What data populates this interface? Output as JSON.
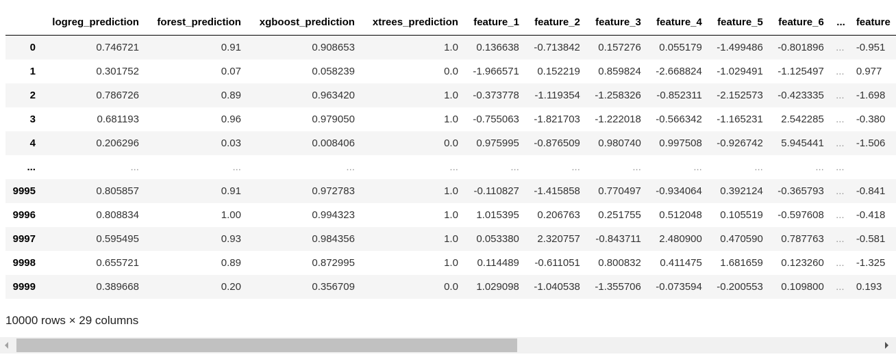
{
  "table": {
    "columns": [
      "",
      "logreg_prediction",
      "forest_prediction",
      "xgboost_prediction",
      "xtrees_prediction",
      "feature_1",
      "feature_2",
      "feature_3",
      "feature_4",
      "feature_5",
      "feature_6",
      "...",
      "feature"
    ],
    "rows": [
      {
        "index": "0",
        "cells": [
          "0.746721",
          "0.91",
          "0.908653",
          "1.0",
          "0.136638",
          "-0.713842",
          "0.157276",
          "0.055179",
          "-1.499486",
          "-0.801896",
          "...",
          "-0.951"
        ]
      },
      {
        "index": "1",
        "cells": [
          "0.301752",
          "0.07",
          "0.058239",
          "0.0",
          "-1.966571",
          "0.152219",
          "0.859824",
          "-2.668824",
          "-1.029491",
          "-1.125497",
          "...",
          "0.977"
        ]
      },
      {
        "index": "2",
        "cells": [
          "0.786726",
          "0.89",
          "0.963420",
          "1.0",
          "-0.373778",
          "-1.119354",
          "-1.258326",
          "-0.852311",
          "-2.152573",
          "-0.423335",
          "...",
          "-1.698"
        ]
      },
      {
        "index": "3",
        "cells": [
          "0.681193",
          "0.96",
          "0.979050",
          "1.0",
          "-0.755063",
          "-1.821703",
          "-1.222018",
          "-0.566342",
          "-1.165231",
          "2.542285",
          "...",
          "-0.380"
        ]
      },
      {
        "index": "4",
        "cells": [
          "0.206296",
          "0.03",
          "0.008406",
          "0.0",
          "0.975995",
          "-0.876509",
          "0.980740",
          "0.997508",
          "-0.926742",
          "5.945441",
          "...",
          "-1.506"
        ]
      },
      {
        "index": "...",
        "cells": [
          "...",
          "...",
          "...",
          "...",
          "...",
          "...",
          "...",
          "...",
          "...",
          "...",
          "...",
          ""
        ]
      },
      {
        "index": "9995",
        "cells": [
          "0.805857",
          "0.91",
          "0.972783",
          "1.0",
          "-0.110827",
          "-1.415858",
          "0.770497",
          "-0.934064",
          "0.392124",
          "-0.365793",
          "...",
          "-0.841"
        ]
      },
      {
        "index": "9996",
        "cells": [
          "0.808834",
          "1.00",
          "0.994323",
          "1.0",
          "1.015395",
          "0.206763",
          "0.251755",
          "0.512048",
          "0.105519",
          "-0.597608",
          "...",
          "-0.418"
        ]
      },
      {
        "index": "9997",
        "cells": [
          "0.595495",
          "0.93",
          "0.984356",
          "1.0",
          "0.053380",
          "2.320757",
          "-0.843711",
          "2.480900",
          "0.470590",
          "0.787763",
          "...",
          "-0.581"
        ]
      },
      {
        "index": "9998",
        "cells": [
          "0.655721",
          "0.89",
          "0.872995",
          "1.0",
          "0.114489",
          "-0.611051",
          "0.800832",
          "0.411475",
          "1.681659",
          "0.123260",
          "...",
          "-1.325"
        ]
      },
      {
        "index": "9999",
        "cells": [
          "0.389668",
          "0.20",
          "0.356709",
          "0.0",
          "1.029098",
          "-1.040538",
          "-1.355706",
          "-0.073594",
          "-0.200553",
          "0.109800",
          "...",
          "0.193"
        ]
      }
    ]
  },
  "shape_text": "10000 rows × 29 columns",
  "scrollbar": {
    "position": 0.0,
    "visible_fraction": 0.58
  },
  "colors": {
    "stripe": "#f5f5f5",
    "ellipsis": "#9a9a9a",
    "scroll_track": "#f1f1f1",
    "scroll_thumb": "#c1c1c1"
  }
}
